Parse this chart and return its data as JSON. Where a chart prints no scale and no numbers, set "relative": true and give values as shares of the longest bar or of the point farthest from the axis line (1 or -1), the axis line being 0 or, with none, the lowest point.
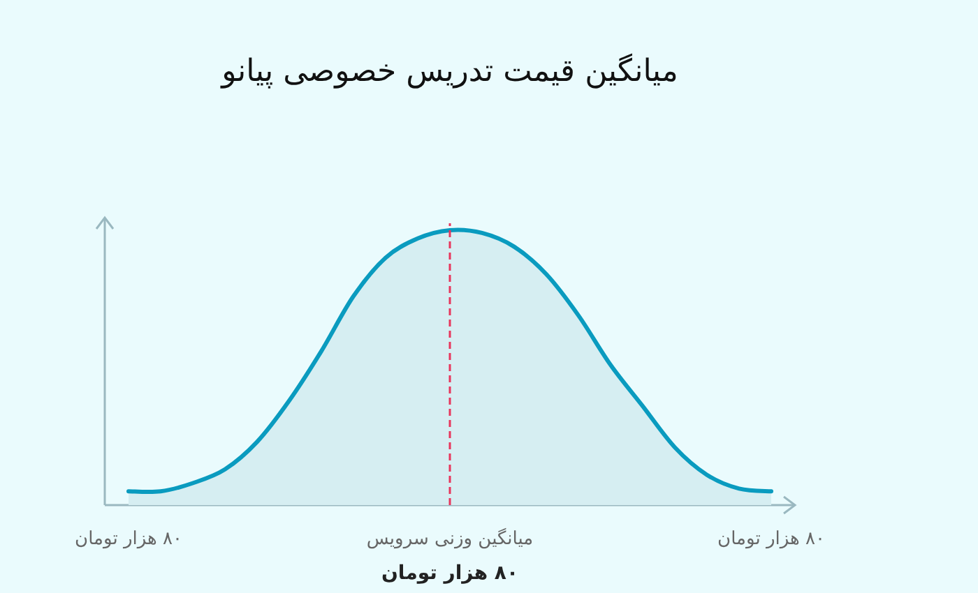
{
  "chart_data": {
    "type": "area",
    "title": "میانگین قیمت تدریس خصوصی پیانو",
    "xlabel": "۸۰ هزار تومان",
    "relative": true,
    "categories": [
      "۸۰ هزار تومان",
      null,
      null,
      null,
      null,
      null,
      null,
      null,
      null,
      null,
      "میانگین وزنی سرویس",
      null,
      null,
      null,
      null,
      null,
      null,
      null,
      null,
      null,
      "۸۰ هزار تومان"
    ],
    "series": [
      {
        "color": "#0a9bbf",
        "values": [
          0.05,
          0.05,
          0.08,
          0.13,
          0.23,
          0.38,
          0.56,
          0.76,
          0.9,
          0.97,
          1,
          0.99,
          0.94,
          0.84,
          0.69,
          0.51,
          0.36,
          0.21,
          0.11,
          0.06,
          0.05
        ]
      }
    ],
    "ref_lines": [
      {
        "axis": "x",
        "value": "میانگین وزنی سرویس",
        "color": "#e8365d",
        "line_style": "dashed"
      }
    ]
  }
}
